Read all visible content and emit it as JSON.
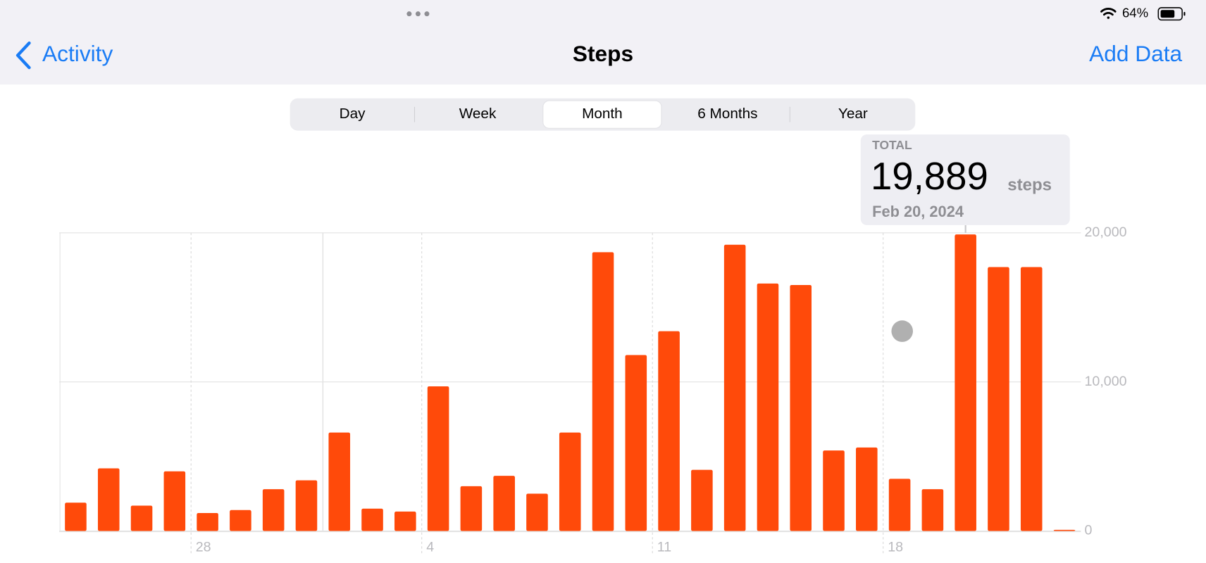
{
  "status_bar": {
    "battery": "64%"
  },
  "nav": {
    "back": "Activity",
    "title": "Steps",
    "action": "Add Data"
  },
  "segments": [
    "Day",
    "Week",
    "Month",
    "6 Months",
    "Year"
  ],
  "tooltip": {
    "title": "TOTAL",
    "value": "19,889",
    "unit": "steps",
    "date": "Feb 20, 2024"
  },
  "chart_data": {
    "type": "bar",
    "categories": [
      null,
      null,
      null,
      null,
      "28",
      null,
      null,
      null,
      null,
      null,
      null,
      "4",
      null,
      null,
      null,
      null,
      null,
      null,
      "11",
      null,
      null,
      null,
      null,
      null,
      null,
      "18",
      null,
      null,
      null,
      null,
      null
    ],
    "values": [
      1900,
      4200,
      1700,
      4000,
      1200,
      1400,
      2800,
      3400,
      6600,
      1500,
      1300,
      9700,
      3000,
      3700,
      2500,
      6600,
      18700,
      11800,
      13400,
      4100,
      19200,
      16600,
      16500,
      5400,
      5600,
      3500,
      2800,
      19889,
      17700,
      17700,
      0
    ],
    "color": "#ff4a0a",
    "ylim": [
      0,
      20000
    ],
    "yticks": [
      0,
      {
        "value": 10000,
        "label": "10,000"
      },
      {
        "value": 20000,
        "label": "20,000"
      }
    ],
    "grid": true
  }
}
